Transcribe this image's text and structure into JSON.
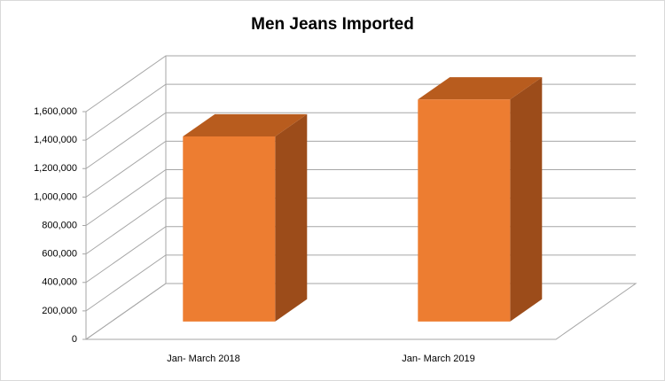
{
  "chart_data": {
    "type": "bar3d",
    "title": "Men Jeans Imported",
    "categories": [
      "Jan- March 2018",
      "Jan- March 2019"
    ],
    "values": [
      1300000,
      1560000
    ],
    "color": "#ED7D31",
    "ylim": [
      0,
      1600000
    ],
    "yticks": [
      0,
      {
        "value": 200000,
        "label": "200,000"
      },
      {
        "value": 400000,
        "label": "400,000"
      },
      {
        "value": 600000,
        "label": "600,000"
      },
      {
        "value": 800000,
        "label": "800,000"
      },
      {
        "value": 1000000,
        "label": "1,000,000"
      },
      {
        "value": 1200000,
        "label": "1,200,000"
      },
      {
        "value": 1400000,
        "label": "1,400,000"
      },
      {
        "value": 1600000,
        "label": "1,600,000"
      }
    ],
    "grid": true
  }
}
